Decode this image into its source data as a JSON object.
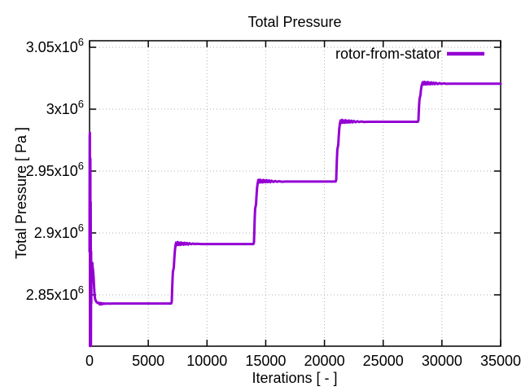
{
  "window": {
    "background": "#ffffff"
  },
  "colors": {
    "accent": "#9400d3",
    "axis": "#000000",
    "grid": "#b0b0b0",
    "text": "#000000",
    "background": "#ffffff"
  },
  "chart_data": {
    "type": "line",
    "title": "Total Pressure",
    "xlabel": "Iterations [ - ]",
    "ylabel": "Total Pressure [ Pa ]",
    "xlim": [
      0,
      35000
    ],
    "ylim": [
      2808500,
      3055300
    ],
    "grid": "dotted",
    "legend_position": "top-right-inside",
    "x_ticks": [
      {
        "value": 0,
        "label": "0"
      },
      {
        "value": 5000,
        "label": "5000"
      },
      {
        "value": 10000,
        "label": "10000"
      },
      {
        "value": 15000,
        "label": "15000"
      },
      {
        "value": 20000,
        "label": "20000"
      },
      {
        "value": 25000,
        "label": "25000"
      },
      {
        "value": 30000,
        "label": "30000"
      },
      {
        "value": 35000,
        "label": "35000"
      }
    ],
    "y_tick_suffix": {
      "base": "x10",
      "exp": "6"
    },
    "y_ticks": [
      {
        "value": 2850000,
        "mantissa": "2.85",
        "label": "2.85x10^6"
      },
      {
        "value": 2900000,
        "mantissa": "2.9",
        "label": "2.9x10^6"
      },
      {
        "value": 2950000,
        "mantissa": "2.95",
        "label": "2.95x10^6"
      },
      {
        "value": 3000000,
        "mantissa": "3",
        "label": "3x10^6"
      },
      {
        "value": 3050000,
        "mantissa": "3.05",
        "label": "3.05x10^6"
      }
    ],
    "series": [
      {
        "name": "rotor-from-stator",
        "color": "#9400d3",
        "line_width": 3,
        "points": [
          [
            0,
            2885000
          ],
          [
            15,
            2978000
          ],
          [
            28,
            2981000
          ],
          [
            42,
            2810000
          ],
          [
            55,
            2808600
          ],
          [
            70,
            2960000
          ],
          [
            85,
            2808700
          ],
          [
            100,
            2925000
          ],
          [
            115,
            2809000
          ],
          [
            130,
            2885000
          ],
          [
            145,
            2843000
          ],
          [
            160,
            2870000
          ],
          [
            175,
            2876000
          ],
          [
            205,
            2874500
          ],
          [
            235,
            2875800
          ],
          [
            265,
            2872500
          ],
          [
            295,
            2869800
          ],
          [
            330,
            2866000
          ],
          [
            365,
            2860000
          ],
          [
            400,
            2854000
          ],
          [
            440,
            2849000
          ],
          [
            480,
            2846500
          ],
          [
            540,
            2845000
          ],
          [
            620,
            2844000
          ],
          [
            700,
            2843400
          ],
          [
            800,
            2843600
          ],
          [
            880,
            2842200
          ],
          [
            940,
            2843400
          ],
          [
            1000,
            2842400
          ],
          [
            1060,
            2843200
          ],
          [
            1130,
            2842500
          ],
          [
            1230,
            2843100
          ],
          [
            1330,
            2842700
          ],
          [
            1450,
            2843000
          ],
          [
            1700,
            2842900
          ],
          [
            2000,
            2843000
          ],
          [
            2600,
            2843000
          ],
          [
            3400,
            2843000
          ],
          [
            4400,
            2843000
          ],
          [
            5400,
            2843000
          ],
          [
            6400,
            2843000
          ],
          [
            6950,
            2843000
          ],
          [
            7000,
            2844500
          ],
          [
            7030,
            2853000
          ],
          [
            7060,
            2862000
          ],
          [
            7100,
            2868500
          ],
          [
            7140,
            2870500
          ],
          [
            7170,
            2872000
          ],
          [
            7210,
            2878000
          ],
          [
            7260,
            2885500
          ],
          [
            7310,
            2889500
          ],
          [
            7370,
            2892200
          ],
          [
            7440,
            2890200
          ],
          [
            7510,
            2892600
          ],
          [
            7580,
            2890400
          ],
          [
            7650,
            2892000
          ],
          [
            7720,
            2890300
          ],
          [
            7790,
            2892300
          ],
          [
            7860,
            2890700
          ],
          [
            7930,
            2891900
          ],
          [
            8010,
            2890500
          ],
          [
            8090,
            2892100
          ],
          [
            8190,
            2890700
          ],
          [
            8290,
            2891900
          ],
          [
            8390,
            2890600
          ],
          [
            8500,
            2891700
          ],
          [
            8650,
            2890900
          ],
          [
            8800,
            2891400
          ],
          [
            8950,
            2891000
          ],
          [
            9150,
            2891200
          ],
          [
            9500,
            2891000
          ],
          [
            10500,
            2891000
          ],
          [
            11500,
            2891000
          ],
          [
            12500,
            2891000
          ],
          [
            13500,
            2891000
          ],
          [
            13950,
            2891000
          ],
          [
            14000,
            2892500
          ],
          [
            14030,
            2901000
          ],
          [
            14060,
            2912000
          ],
          [
            14100,
            2919500
          ],
          [
            14140,
            2921500
          ],
          [
            14170,
            2923000
          ],
          [
            14210,
            2929000
          ],
          [
            14260,
            2936500
          ],
          [
            14310,
            2940000
          ],
          [
            14370,
            2942800
          ],
          [
            14440,
            2940700
          ],
          [
            14510,
            2943100
          ],
          [
            14580,
            2940900
          ],
          [
            14650,
            2942500
          ],
          [
            14720,
            2940800
          ],
          [
            14790,
            2942800
          ],
          [
            14860,
            2941100
          ],
          [
            14930,
            2942400
          ],
          [
            15010,
            2941000
          ],
          [
            15090,
            2942600
          ],
          [
            15190,
            2941100
          ],
          [
            15290,
            2942400
          ],
          [
            15390,
            2941000
          ],
          [
            15500,
            2942200
          ],
          [
            15650,
            2941200
          ],
          [
            15800,
            2942000
          ],
          [
            15950,
            2941300
          ],
          [
            16150,
            2941800
          ],
          [
            16350,
            2941400
          ],
          [
            16700,
            2941500
          ],
          [
            17700,
            2941500
          ],
          [
            18700,
            2941500
          ],
          [
            19700,
            2941500
          ],
          [
            20700,
            2941500
          ],
          [
            20950,
            2941500
          ],
          [
            21000,
            2943000
          ],
          [
            21030,
            2951000
          ],
          [
            21060,
            2960500
          ],
          [
            21100,
            2967500
          ],
          [
            21140,
            2969500
          ],
          [
            21170,
            2971000
          ],
          [
            21210,
            2977000
          ],
          [
            21260,
            2984500
          ],
          [
            21310,
            2988200
          ],
          [
            21370,
            2990900
          ],
          [
            21440,
            2988900
          ],
          [
            21510,
            2991300
          ],
          [
            21580,
            2989100
          ],
          [
            21650,
            2990700
          ],
          [
            21720,
            2989000
          ],
          [
            21790,
            2991100
          ],
          [
            21860,
            2989300
          ],
          [
            21930,
            2990600
          ],
          [
            22010,
            2989200
          ],
          [
            22090,
            2990900
          ],
          [
            22190,
            2989300
          ],
          [
            22290,
            2990700
          ],
          [
            22390,
            2989300
          ],
          [
            22500,
            2990500
          ],
          [
            22650,
            2989500
          ],
          [
            22800,
            2990300
          ],
          [
            22950,
            2989600
          ],
          [
            23150,
            2990100
          ],
          [
            23350,
            2989700
          ],
          [
            23700,
            2989800
          ],
          [
            24700,
            2989800
          ],
          [
            25700,
            2989800
          ],
          [
            26700,
            2989800
          ],
          [
            27700,
            2989800
          ],
          [
            27950,
            2989800
          ],
          [
            28000,
            2991000
          ],
          [
            28030,
            2997500
          ],
          [
            28060,
            3004000
          ],
          [
            28100,
            3008500
          ],
          [
            28140,
            3010000
          ],
          [
            28170,
            3011500
          ],
          [
            28210,
            3015000
          ],
          [
            28260,
            3018500
          ],
          [
            28310,
            3020200
          ],
          [
            28370,
            3021800
          ],
          [
            28440,
            3019900
          ],
          [
            28510,
            3022100
          ],
          [
            28580,
            3020000
          ],
          [
            28650,
            3021600
          ],
          [
            28720,
            3020000
          ],
          [
            28790,
            3021900
          ],
          [
            28860,
            3020200
          ],
          [
            28930,
            3021400
          ],
          [
            29010,
            3020100
          ],
          [
            29090,
            3021700
          ],
          [
            29190,
            3020200
          ],
          [
            29290,
            3021500
          ],
          [
            29390,
            3020200
          ],
          [
            29500,
            3021300
          ],
          [
            29650,
            3020300
          ],
          [
            29800,
            3021100
          ],
          [
            29950,
            3020400
          ],
          [
            30150,
            3020900
          ],
          [
            30350,
            3020500
          ],
          [
            30700,
            3020600
          ],
          [
            31700,
            3020600
          ],
          [
            32700,
            3020600
          ],
          [
            33700,
            3020600
          ],
          [
            35000,
            3020600
          ]
        ]
      }
    ]
  }
}
